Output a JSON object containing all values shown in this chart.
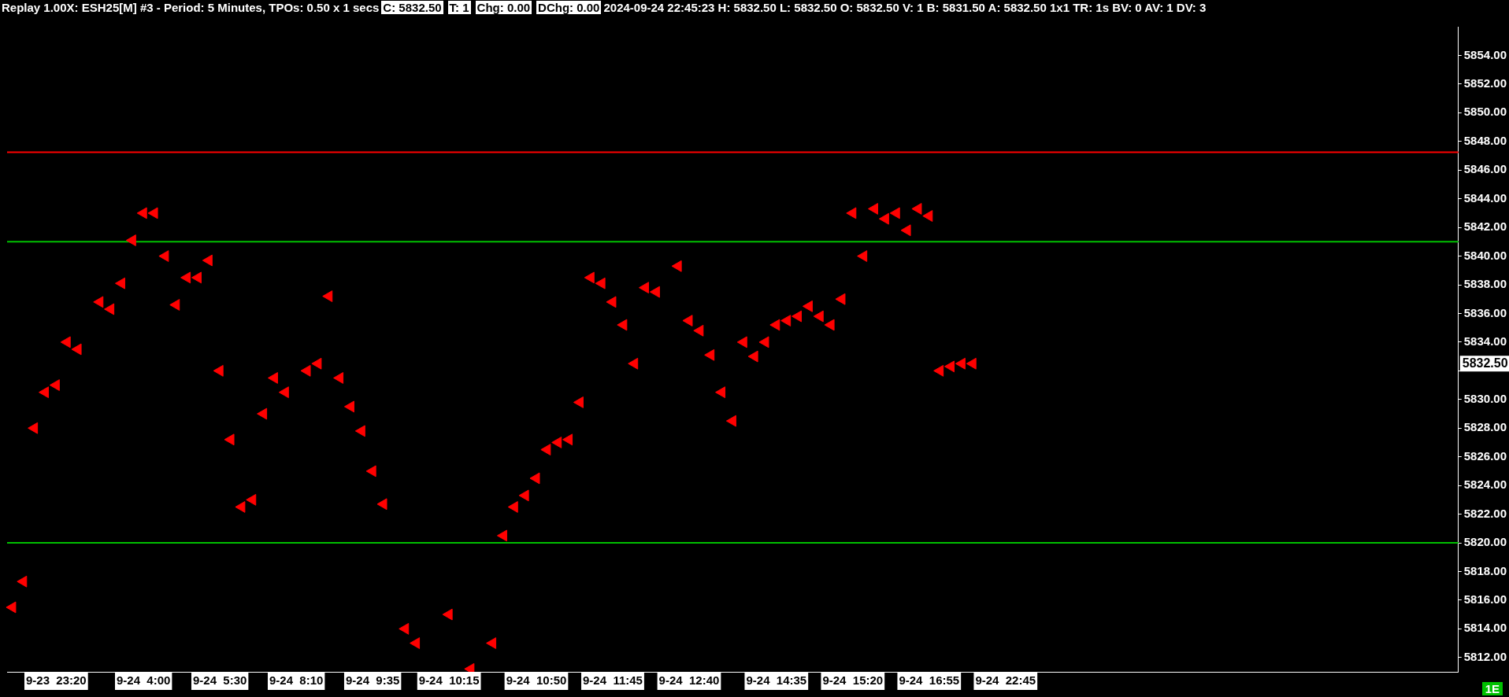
{
  "chart_data": {
    "type": "scatter",
    "title": "Replay 1.00X: ESH25[M] #3 - Period: 5 Minutes, TPOs: 0.50 x 1 secs",
    "subtitle": "2024-09-24 22:45:23 H: 5832.50 L: 5832.50 O: 5832.50 V: 1 B: 5831.50 A: 5832.50 1x1 TR: 1s BV: 0 AV: 1 DV: 3",
    "annotations": [
      "C: 5832.50",
      "T: 1",
      "Chg: 0.00",
      "DChg: 0.00",
      "1E",
      "5832.50"
    ],
    "categories": [
      null,
      null,
      null,
      null,
      "9-23  23:20",
      null,
      null,
      null,
      null,
      null,
      null,
      null,
      "9-24  4:00",
      null,
      null,
      null,
      null,
      null,
      null,
      "9-24  5:30",
      null,
      null,
      null,
      null,
      null,
      null,
      "9-24  8:10",
      null,
      null,
      null,
      null,
      null,
      null,
      "9-24  9:35",
      null,
      null,
      null,
      null,
      null,
      null,
      "9-24  10:15",
      null,
      null,
      null,
      null,
      null,
      null,
      null,
      "9-24  10:50",
      null,
      null,
      null,
      null,
      null,
      null,
      "9-24  11:45",
      null,
      null,
      null,
      null,
      null,
      null,
      "9-24  12:40",
      null,
      null,
      null,
      null,
      null,
      null,
      null,
      "9-24  14:35",
      null,
      null,
      null,
      null,
      null,
      null,
      "9-24  15:20",
      null,
      null,
      null,
      null,
      null,
      null,
      "9-24  16:55",
      null,
      null,
      null,
      null,
      null,
      null,
      "9-24  22:45",
      null,
      null,
      null,
      null,
      null,
      null,
      null,
      null,
      null,
      null,
      null,
      null,
      null,
      null,
      null,
      null,
      null,
      null,
      null,
      null,
      null,
      null,
      null,
      null,
      null,
      null,
      null,
      null,
      null,
      null,
      null,
      null,
      null,
      null,
      null,
      null,
      null,
      null,
      null,
      null,
      null
    ],
    "series": [
      {
        "color": "#ff0000",
        "values": [
          5815.5,
          5817.3,
          5828.0,
          5830.5,
          5831.0,
          5834.0,
          5833.5,
          null,
          5836.8,
          5836.3,
          5838.1,
          5841.1,
          5843.0,
          5843.0,
          5840.0,
          5836.6,
          5838.5,
          5838.5,
          5839.7,
          5832.0,
          5827.2,
          5822.5,
          5823.0,
          5829.0,
          5831.5,
          5830.5,
          null,
          5832.0,
          5832.5,
          5837.2,
          5831.5,
          5829.5,
          5827.8,
          5825.0,
          5822.7,
          null,
          5814.0,
          5813.0,
          null,
          null,
          5815.0,
          null,
          5811.2,
          null,
          5813.0,
          5820.5,
          5822.5,
          5823.3,
          5824.5,
          5826.5,
          5827.0,
          5827.2,
          5829.8,
          5838.5,
          5838.1,
          5836.8,
          5835.2,
          5832.5,
          5837.8,
          5837.5,
          null,
          5839.3,
          5835.5,
          5834.8,
          5833.1,
          5830.5,
          5828.5,
          5834.0,
          5833.0,
          5834.0,
          5835.2,
          5835.5,
          5835.8,
          5836.5,
          5835.8,
          5835.2,
          5837.0,
          5843.0,
          5840.0,
          5843.3,
          5842.6,
          5843.0,
          5841.8,
          5843.3,
          5842.8,
          5832.0,
          5832.3,
          5832.5,
          5832.5,
          null,
          null,
          null,
          null,
          null,
          null,
          null,
          null,
          null,
          null,
          null,
          null,
          null,
          null,
          null,
          null,
          null,
          null,
          null,
          null,
          null,
          null,
          null,
          null,
          null,
          null,
          null,
          null,
          null,
          null,
          null,
          null,
          null,
          null,
          null,
          null,
          null,
          null,
          null,
          null,
          null,
          null,
          null,
          null
        ]
      }
    ],
    "marker": "triangle",
    "ylim": [
      5811,
      5856
    ],
    "yticks": [
      {
        "value": 5812,
        "label": "5812.00"
      },
      {
        "value": 5814,
        "label": "5814.00"
      },
      {
        "value": 5816,
        "label": "5816.00"
      },
      {
        "value": 5818,
        "label": "5818.00"
      },
      {
        "value": 5820,
        "label": "5820.00"
      },
      {
        "value": 5822,
        "label": "5822.00"
      },
      {
        "value": 5824,
        "label": "5824.00"
      },
      {
        "value": 5826,
        "label": "5826.00"
      },
      {
        "value": 5828,
        "label": "5828.00"
      },
      {
        "value": 5830,
        "label": "5830.00"
      },
      {
        "value": 5832,
        "label": null
      },
      {
        "value": 5834,
        "label": "5834.00"
      },
      {
        "value": 5836,
        "label": "5836.00"
      },
      {
        "value": 5838,
        "label": "5838.00"
      },
      {
        "value": 5840,
        "label": "5840.00"
      },
      {
        "value": 5842,
        "label": "5842.00"
      },
      {
        "value": 5844,
        "label": "5844.00"
      },
      {
        "value": 5846,
        "label": "5846.00"
      },
      {
        "value": 5848,
        "label": "5848.00"
      },
      {
        "value": 5850,
        "label": "5850.00"
      },
      {
        "value": 5852,
        "label": "5852.00"
      },
      {
        "value": 5854,
        "label": "5854.00"
      }
    ],
    "ref_lines": [
      {
        "axis": "y",
        "value": 5847.25,
        "color": "#ff0000"
      },
      {
        "axis": "y",
        "value": 5841,
        "color": "#00c000"
      },
      {
        "axis": "y",
        "value": 5820,
        "color": "#00c000"
      }
    ],
    "grid": false,
    "legend": false
  }
}
